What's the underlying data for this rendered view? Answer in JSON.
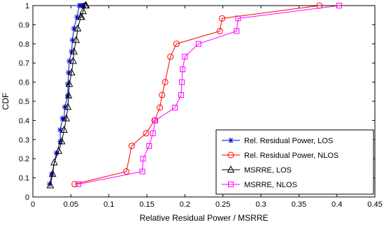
{
  "chart_data": {
    "type": "line",
    "title": "",
    "xlabel": "Relative Residual Power / MSRRE",
    "ylabel": "CDF",
    "xlim": [
      0,
      0.45
    ],
    "ylim": [
      0,
      1
    ],
    "xticks": [
      0,
      0.05,
      0.1,
      0.15,
      0.2,
      0.25,
      0.3,
      0.35,
      0.4,
      0.45
    ],
    "xtick_labels": [
      "0",
      "0.05",
      "0.1",
      "0.15",
      "0.2",
      "0.25",
      "0.3",
      "0.35",
      "0.4",
      "0.45"
    ],
    "yticks": [
      0,
      0.1,
      0.2,
      0.3,
      0.4,
      0.5,
      0.6,
      0.7,
      0.8,
      0.9,
      1
    ],
    "ytick_labels": [
      "0",
      "0.1",
      "0.2",
      "0.3",
      "0.4",
      "0.5",
      "0.6",
      "0.7",
      "0.8",
      "0.9",
      "1"
    ],
    "grid": false,
    "legend_position": "bottom-right",
    "series": [
      {
        "name": "Rel. Residual Power, LOS",
        "color": "#0000cc",
        "marker": "asterisk",
        "x": [
          0.022,
          0.025,
          0.031,
          0.036,
          0.036,
          0.039,
          0.041,
          0.042,
          0.046,
          0.046,
          0.047,
          0.048,
          0.051,
          0.052,
          0.054,
          0.058,
          0.061,
          0.063,
          0.066,
          0.067
        ],
        "y": [
          0.067,
          0.12,
          0.23,
          0.29,
          0.35,
          0.41,
          0.41,
          0.47,
          0.53,
          0.59,
          0.65,
          0.71,
          0.76,
          0.82,
          0.88,
          0.94,
          1.0,
          1.0,
          1.0,
          1.0
        ]
      },
      {
        "name": "Rel. Residual Power, NLOS",
        "color": "#ff0000",
        "marker": "circle",
        "x": [
          0.055,
          0.123,
          0.13,
          0.149,
          0.16,
          0.167,
          0.17,
          0.174,
          0.181,
          0.189,
          0.246,
          0.249,
          0.377
        ],
        "y": [
          0.067,
          0.133,
          0.267,
          0.333,
          0.4,
          0.467,
          0.533,
          0.6,
          0.733,
          0.8,
          0.867,
          0.933,
          1.0
        ]
      },
      {
        "name": "MSRRE, LOS",
        "color": "#000000",
        "marker": "triangle",
        "x": [
          0.023,
          0.026,
          0.028,
          0.034,
          0.038,
          0.041,
          0.044,
          0.046,
          0.047,
          0.048,
          0.051,
          0.053,
          0.054,
          0.057,
          0.059,
          0.063,
          0.064,
          0.066,
          0.069,
          0.07
        ],
        "y": [
          0.06,
          0.12,
          0.18,
          0.24,
          0.29,
          0.35,
          0.41,
          0.47,
          0.53,
          0.59,
          0.65,
          0.71,
          0.76,
          0.82,
          0.88,
          0.94,
          0.94,
          0.97,
          1.0,
          1.0
        ]
      },
      {
        "name": "MSRRE, NLOS",
        "color": "#ff00ff",
        "marker": "square",
        "x": [
          0.06,
          0.144,
          0.145,
          0.153,
          0.158,
          0.161,
          0.187,
          0.195,
          0.196,
          0.197,
          0.2,
          0.218,
          0.268,
          0.27,
          0.403
        ],
        "y": [
          0.067,
          0.133,
          0.2,
          0.267,
          0.333,
          0.4,
          0.467,
          0.533,
          0.6,
          0.667,
          0.733,
          0.8,
          0.867,
          0.933,
          1.0
        ]
      }
    ]
  }
}
